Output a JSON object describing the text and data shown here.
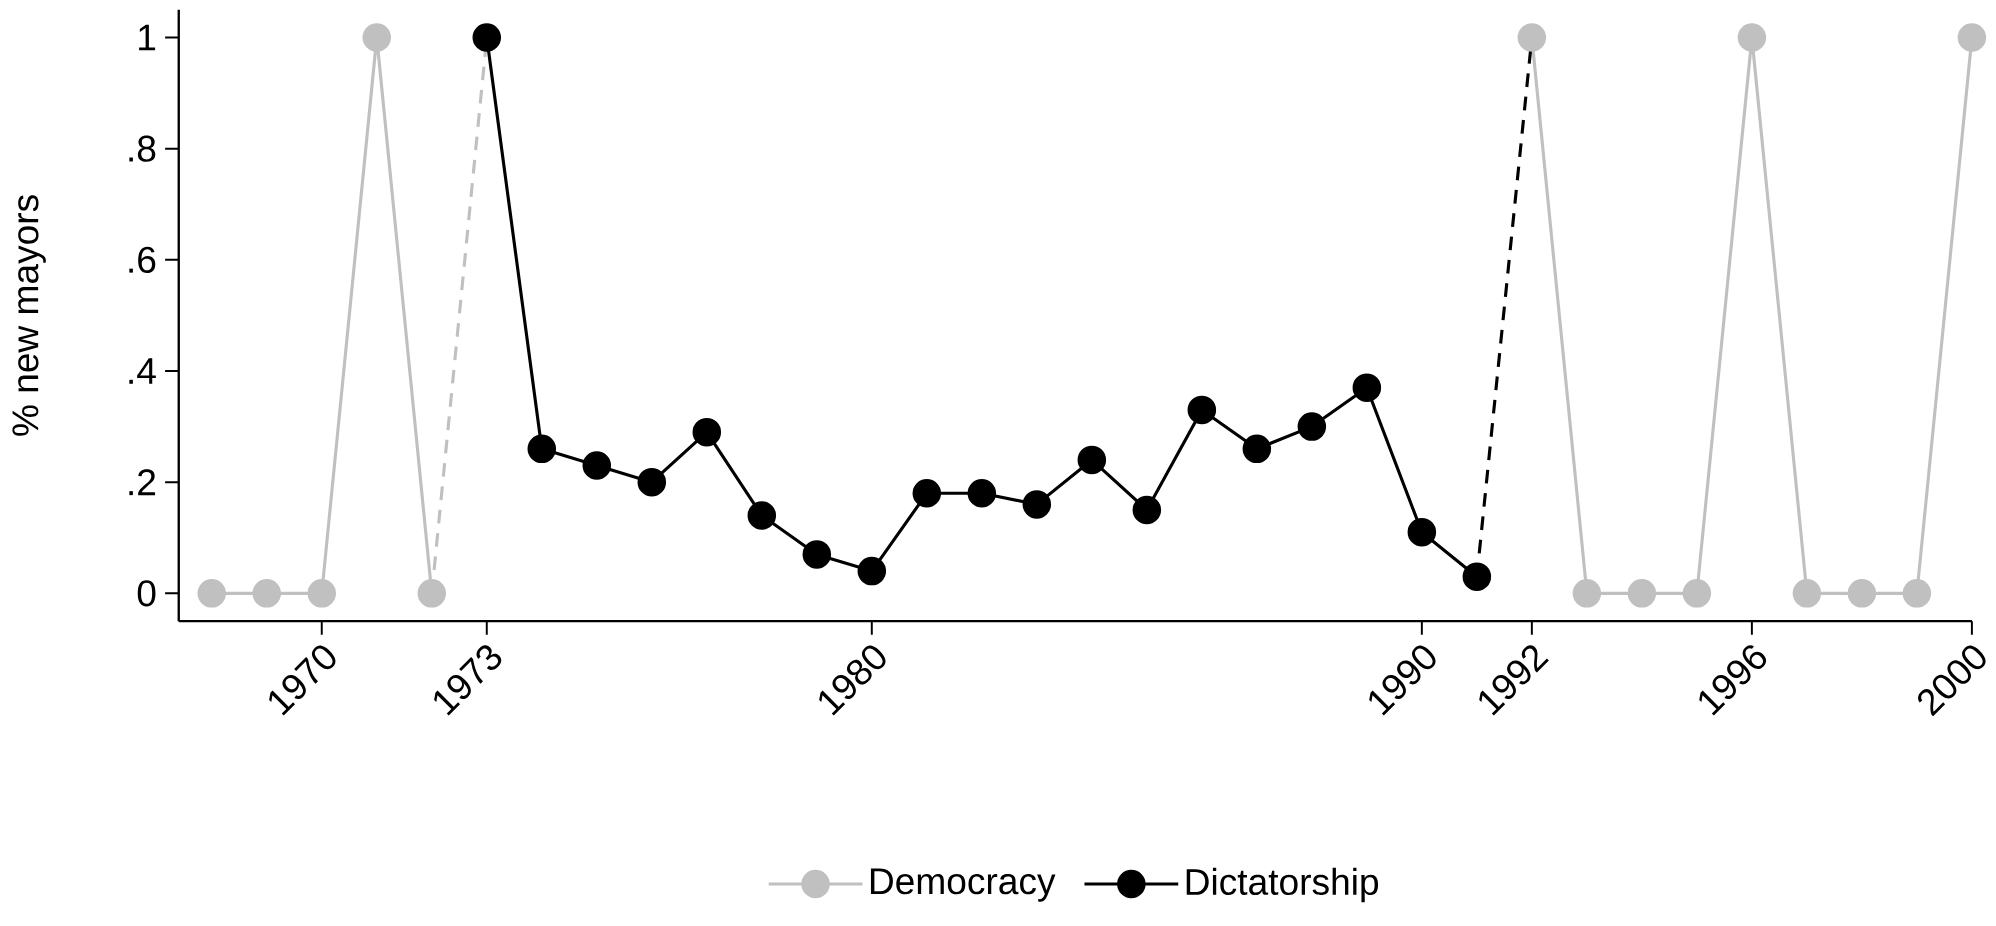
{
  "chart_data": {
    "type": "line",
    "ylabel": "% new mayors",
    "xlim": [
      1967.4,
      2000
    ],
    "ylim": [
      -0.05,
      1.05
    ],
    "xticks": [
      1970,
      1973,
      1980,
      1990,
      1992,
      1996,
      2000
    ],
    "yticks": [
      0,
      {
        "value": 0.2,
        "label": ".2"
      },
      {
        "value": 0.4,
        "label": ".4"
      },
      {
        "value": 0.6,
        "label": ".6"
      },
      {
        "value": 0.8,
        "label": ".8"
      },
      1
    ],
    "grid": false,
    "legend": "bottom",
    "marker": "circle",
    "series": [
      {
        "name": "Democracy",
        "color": "#c0c0c0",
        "x": [
          1968,
          1969,
          1970,
          1971,
          1972,
          1973,
          1974,
          1975,
          1976,
          1977,
          1978,
          1979,
          1980,
          1981,
          1982,
          1983,
          1984,
          1985,
          1986,
          1987,
          1988,
          1989,
          1990,
          1991,
          1992,
          1993,
          1994,
          1995,
          1996,
          1997,
          1998,
          1999,
          2000
        ],
        "values": [
          0,
          0,
          0,
          1,
          0,
          null,
          null,
          null,
          null,
          null,
          null,
          null,
          null,
          null,
          null,
          null,
          null,
          null,
          null,
          null,
          null,
          null,
          null,
          null,
          1,
          0,
          0,
          0,
          1,
          0,
          0,
          0,
          1
        ]
      },
      {
        "name": "Dictatorship",
        "color": "#000000",
        "x": [
          1973,
          1974,
          1975,
          1976,
          1977,
          1978,
          1979,
          1980,
          1981,
          1982,
          1983,
          1984,
          1985,
          1986,
          1987,
          1988,
          1989,
          1990,
          1991
        ],
        "values": [
          1,
          0.26,
          0.23,
          0.2,
          0.29,
          0.14,
          0.07,
          0.04,
          0.18,
          0.18,
          0.16,
          0.24,
          0.15,
          0.33,
          0.26,
          0.3,
          0.37,
          0.11,
          0.03
        ]
      },
      {
        "color": "#c0c0c0",
        "line_style": "dashed",
        "marker": "none",
        "x": [
          1972,
          1973
        ],
        "values": [
          0,
          1
        ]
      },
      {
        "color": "#000000",
        "line_style": "dashed",
        "marker": "none",
        "x": [
          1991,
          1992
        ],
        "values": [
          0.03,
          1
        ]
      }
    ]
  }
}
